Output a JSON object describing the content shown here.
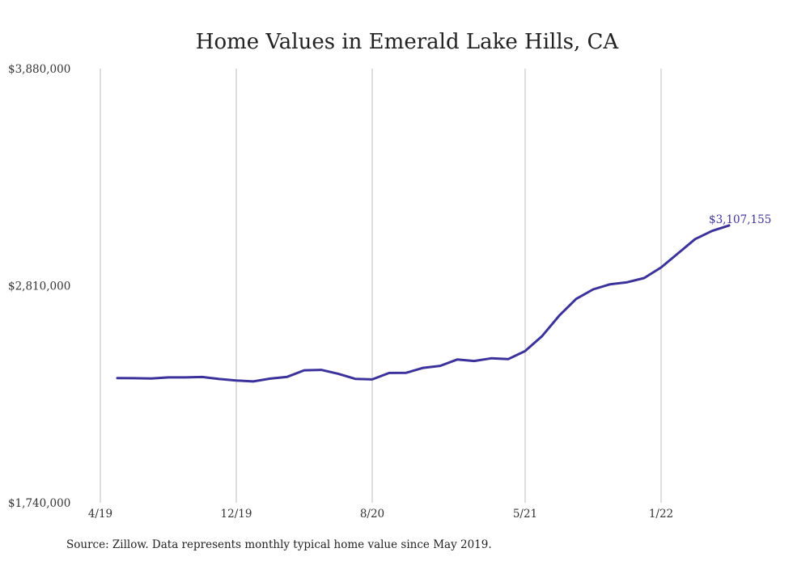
{
  "chart_data": {
    "type": "line",
    "title": "Home Values in Emerald Lake Hills, CA",
    "xlabel": "",
    "ylabel": "",
    "ylim": [
      1740000,
      3880000
    ],
    "yticks": [
      "$3,880,000",
      "$2,810,000",
      "$1,740,000"
    ],
    "ytick_values": [
      3880000,
      2810000,
      1740000
    ],
    "xticks": [
      "4/19",
      "12/19",
      "8/20",
      "5/21",
      "1/22"
    ],
    "xtick_months": [
      0,
      8,
      16,
      25,
      33
    ],
    "grid": "vertical",
    "color": "#3c329b",
    "end_label": "$3,107,155",
    "x": [
      "5/19",
      "6/19",
      "7/19",
      "8/19",
      "9/19",
      "10/19",
      "11/19",
      "12/19",
      "1/20",
      "2/20",
      "3/20",
      "4/20",
      "5/20",
      "6/20",
      "7/20",
      "8/20",
      "9/20",
      "10/20",
      "11/20",
      "12/20",
      "1/21",
      "2/21",
      "3/21",
      "4/21",
      "5/21",
      "6/21",
      "7/21",
      "8/21",
      "9/21",
      "10/21",
      "11/21",
      "12/21",
      "1/22",
      "2/22",
      "3/22",
      "4/22",
      "5/22"
    ],
    "series": [
      {
        "values": [
          2355000,
          2354000,
          2353000,
          2358000,
          2358000,
          2360000,
          2350000,
          2343000,
          2338000,
          2352000,
          2361000,
          2393000,
          2395000,
          2376000,
          2351000,
          2348000,
          2380000,
          2381000,
          2405000,
          2415000,
          2446000,
          2439000,
          2452000,
          2448000,
          2488000,
          2562000,
          2662000,
          2745000,
          2792000,
          2817000,
          2827000,
          2848000,
          2900000,
          2970000,
          3040000,
          3080000,
          3107155
        ]
      }
    ]
  },
  "source_text": "Source: Zillow. Data represents monthly typical home value since May 2019."
}
